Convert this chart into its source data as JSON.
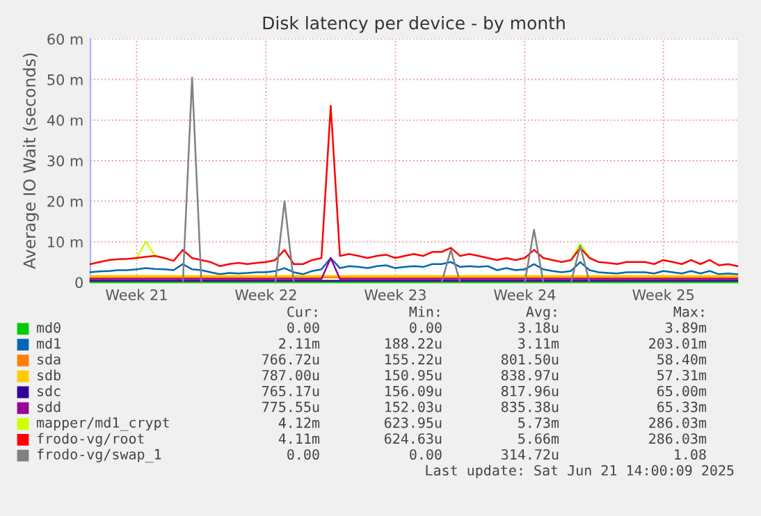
{
  "chart_data": {
    "type": "line",
    "title": "Disk latency per device - by month",
    "ylabel": "Average IO Wait (seconds)",
    "categories": [
      null,
      null,
      null,
      null,
      null,
      "Week 21",
      null,
      null,
      null,
      null,
      null,
      null,
      null,
      null,
      null,
      null,
      null,
      null,
      null,
      "Week 22",
      null,
      null,
      null,
      null,
      null,
      null,
      null,
      null,
      null,
      null,
      null,
      null,
      null,
      "Week 23",
      null,
      null,
      null,
      null,
      null,
      null,
      null,
      null,
      null,
      null,
      null,
      null,
      null,
      "Week 24",
      null,
      null,
      null,
      null,
      null,
      null,
      null,
      null,
      null,
      null,
      null,
      null,
      null,
      null,
      "Week 25",
      null,
      null,
      null,
      null,
      null,
      null,
      null,
      null
    ],
    "ylim": [
      0,
      60
    ],
    "yticks": [
      0,
      {
        "value": 10,
        "label": "10 m"
      },
      {
        "value": 20,
        "label": "20 m"
      },
      {
        "value": 30,
        "label": "30 m"
      },
      {
        "value": 40,
        "label": "40 m"
      },
      {
        "value": 50,
        "label": "50 m"
      },
      {
        "value": 60,
        "label": "60 m"
      }
    ],
    "grid": true,
    "legend": "bottom",
    "line_style": "solid",
    "marker": "none",
    "series": [
      {
        "name": "md0",
        "color": "#00cc00",
        "values": [
          0,
          0,
          0,
          0,
          0,
          0,
          0,
          0,
          0,
          0,
          0,
          0,
          0,
          0,
          0,
          0,
          0,
          0,
          0,
          0,
          0,
          0,
          0,
          0,
          0,
          0,
          0,
          0,
          0,
          0,
          0,
          0,
          0,
          0,
          0,
          0,
          0,
          0,
          0,
          0,
          0,
          0,
          0,
          0,
          0,
          0,
          0,
          0,
          0,
          0,
          0,
          0,
          0,
          0,
          0,
          0,
          0,
          0,
          0,
          0,
          0,
          0,
          0,
          0,
          0,
          0,
          0,
          0,
          0,
          0,
          0
        ]
      },
      {
        "name": "md1",
        "color": "#0066b3",
        "values": [
          2.5,
          2.7,
          2.8,
          3.0,
          3.0,
          3.2,
          3.5,
          3.3,
          3.2,
          3.0,
          4.5,
          3.2,
          3.0,
          2.5,
          2.0,
          2.3,
          2.2,
          2.3,
          2.5,
          2.5,
          2.8,
          3.5,
          2.5,
          2.0,
          2.8,
          3.2,
          6.0,
          3.5,
          4.0,
          3.8,
          3.5,
          4.0,
          4.2,
          3.5,
          3.8,
          4.0,
          3.8,
          4.5,
          4.5,
          5.0,
          3.8,
          4.0,
          3.8,
          4.0,
          3.0,
          3.5,
          3.0,
          3.2,
          4.5,
          3.2,
          2.8,
          2.5,
          2.8,
          5.0,
          3.0,
          2.5,
          2.3,
          2.2,
          2.5,
          2.5,
          2.5,
          2.2,
          2.8,
          2.5,
          2.2,
          2.8,
          2.2,
          2.8,
          2.0,
          2.2,
          2.0
        ]
      },
      {
        "name": "sda",
        "color": "#ff8000",
        "values": [
          1.2,
          1.2,
          1.2,
          1.2,
          1.2,
          1.2,
          1.2,
          1.2,
          1.2,
          1.2,
          1.2,
          1.2,
          1.2,
          1.2,
          1.2,
          1.2,
          1.2,
          1.2,
          1.2,
          1.2,
          1.2,
          1.2,
          1.2,
          1.2,
          1.2,
          1.2,
          1.2,
          1.2,
          1.2,
          1.2,
          1.2,
          1.2,
          1.2,
          1.2,
          1.2,
          1.2,
          1.2,
          1.2,
          1.2,
          1.2,
          1.2,
          1.2,
          1.2,
          1.2,
          1.2,
          1.2,
          1.2,
          1.2,
          1.2,
          1.2,
          1.2,
          1.2,
          1.2,
          1.2,
          1.2,
          1.2,
          1.2,
          1.2,
          1.2,
          1.2,
          1.2,
          1.2,
          1.2,
          1.2,
          1.2,
          1.2,
          1.2,
          1.2,
          1.2,
          1.2,
          1.2
        ]
      },
      {
        "name": "sdb",
        "color": "#ffcc00",
        "values": [
          1.6,
          1.6,
          1.6,
          1.6,
          1.6,
          1.6,
          1.6,
          1.6,
          1.6,
          1.6,
          1.6,
          1.6,
          1.6,
          1.6,
          1.6,
          1.6,
          1.6,
          1.6,
          1.6,
          1.6,
          1.6,
          1.6,
          1.6,
          1.6,
          1.6,
          1.6,
          1.6,
          1.6,
          1.6,
          1.6,
          1.6,
          1.6,
          1.6,
          1.6,
          1.6,
          1.6,
          1.6,
          1.6,
          1.6,
          1.6,
          1.6,
          1.6,
          1.6,
          1.6,
          1.6,
          1.6,
          1.6,
          1.6,
          1.6,
          1.6,
          1.6,
          1.6,
          1.6,
          1.6,
          1.6,
          1.6,
          1.6,
          1.6,
          1.6,
          1.6,
          1.6,
          1.6,
          1.6,
          1.6,
          1.6,
          1.6,
          1.6,
          1.6,
          1.6,
          1.6,
          1.6
        ]
      },
      {
        "name": "sdc",
        "color": "#330099",
        "values": [
          0.4,
          0.4,
          0.4,
          0.4,
          0.4,
          0.4,
          0.4,
          0.4,
          0.4,
          0.4,
          0.4,
          0.4,
          0.4,
          0.4,
          0.4,
          0.4,
          0.4,
          0.4,
          0.4,
          0.4,
          0.4,
          0.4,
          0.4,
          0.4,
          0.4,
          0.4,
          0.4,
          0.4,
          0.4,
          0.4,
          0.4,
          0.4,
          0.4,
          0.4,
          0.4,
          0.4,
          0.4,
          0.4,
          0.4,
          0.4,
          0.4,
          0.4,
          0.4,
          0.4,
          0.4,
          0.4,
          0.4,
          0.4,
          0.4,
          0.4,
          0.4,
          0.4,
          0.4,
          0.4,
          0.4,
          0.4,
          0.4,
          0.4,
          0.4,
          0.4,
          0.4,
          0.4,
          0.4,
          0.4,
          0.4,
          0.4,
          0.4,
          0.4,
          0.4,
          0.4,
          0.4
        ]
      },
      {
        "name": "sdd",
        "color": "#990099",
        "values": [
          0.8,
          0.8,
          0.8,
          0.8,
          0.8,
          0.8,
          0.8,
          0.8,
          0.8,
          0.8,
          0.8,
          0.8,
          0.8,
          0.8,
          0.8,
          0.8,
          0.8,
          0.8,
          0.8,
          0.8,
          0.8,
          0.8,
          0.8,
          0.8,
          0.8,
          0.8,
          6.0,
          0.8,
          0.8,
          0.8,
          0.8,
          0.8,
          0.8,
          0.8,
          0.8,
          0.8,
          0.8,
          0.8,
          0.8,
          0.8,
          0.8,
          0.8,
          0.8,
          0.8,
          0.8,
          0.8,
          0.8,
          0.8,
          0.8,
          0.8,
          0.8,
          0.8,
          0.8,
          0.8,
          0.8,
          0.8,
          0.8,
          0.8,
          0.8,
          0.8,
          0.8,
          0.8,
          0.8,
          0.8,
          0.8,
          0.8,
          0.8,
          0.8,
          0.8,
          0.8,
          0.8
        ]
      },
      {
        "name": "mapper/md1_crypt",
        "color": "#ccff00",
        "values": [
          null,
          null,
          null,
          null,
          null,
          6.0,
          10.0,
          6.5,
          null,
          null,
          null,
          null,
          null,
          null,
          null,
          null,
          null,
          null,
          null,
          null,
          null,
          null,
          null,
          null,
          null,
          null,
          null,
          null,
          null,
          null,
          null,
          null,
          null,
          null,
          null,
          null,
          null,
          null,
          null,
          null,
          null,
          null,
          null,
          null,
          null,
          null,
          null,
          null,
          null,
          null,
          null,
          null,
          5.5,
          9.5,
          6.0,
          null,
          null,
          null,
          null,
          null,
          null,
          null,
          null,
          null,
          null,
          null,
          null,
          null,
          null,
          null,
          null
        ]
      },
      {
        "name": "frodo-vg/root",
        "color": "#ff0000",
        "values": [
          4.5,
          5.0,
          5.5,
          5.7,
          5.8,
          6.0,
          6.3,
          6.5,
          6.0,
          5.3,
          8.0,
          6.0,
          5.5,
          5.0,
          4.0,
          4.5,
          4.8,
          4.5,
          4.8,
          5.0,
          5.5,
          8.0,
          4.5,
          4.5,
          5.5,
          6.0,
          43.5,
          6.5,
          7.0,
          6.5,
          6.0,
          6.5,
          6.8,
          6.0,
          6.5,
          7.0,
          6.5,
          7.5,
          7.5,
          8.5,
          6.5,
          7.0,
          6.5,
          6.0,
          5.5,
          6.0,
          5.5,
          6.0,
          8.0,
          6.0,
          5.5,
          5.0,
          5.5,
          8.5,
          6.0,
          5.0,
          4.8,
          4.5,
          5.0,
          5.0,
          5.0,
          4.5,
          5.5,
          5.0,
          4.5,
          5.5,
          4.5,
          5.5,
          4.2,
          4.5,
          4.0
        ]
      },
      {
        "name": "frodo-vg/swap_1",
        "color": "#808080",
        "values": [
          null,
          null,
          null,
          null,
          null,
          null,
          null,
          null,
          null,
          null,
          0,
          50.5,
          0,
          null,
          null,
          null,
          null,
          null,
          null,
          null,
          0,
          20,
          0,
          null,
          null,
          null,
          null,
          null,
          null,
          null,
          null,
          null,
          null,
          null,
          null,
          null,
          null,
          null,
          0,
          8,
          0,
          null,
          null,
          null,
          null,
          null,
          null,
          0,
          13,
          0,
          null,
          null,
          0,
          9,
          0,
          null,
          null,
          null,
          null,
          null,
          null,
          null,
          null,
          null,
          null,
          null,
          null,
          null,
          null,
          null,
          null
        ]
      }
    ],
    "annotations": [
      "Cur:",
      "Min:",
      "Avg:",
      "Max:",
      "0.00",
      "0.00",
      "3.18u",
      "3.89m",
      "2.11m",
      "188.22u",
      "3.11m",
      "203.01m",
      "766.72u",
      "155.22u",
      "801.50u",
      "58.40m",
      "787.00u",
      "150.95u",
      "838.97u",
      "57.31m",
      "765.17u",
      "156.09u",
      "817.96u",
      "65.00m",
      "775.55u",
      "152.03u",
      "835.38u",
      "65.33m",
      "4.12m",
      "623.95u",
      "5.73m",
      "286.03m",
      "4.11m",
      "624.63u",
      "5.66m",
      "286.03m",
      "0.00",
      "0.00",
      "314.72u",
      "1.08",
      "Last update: Sat Jun 21 14:00:09 2025"
    ]
  }
}
